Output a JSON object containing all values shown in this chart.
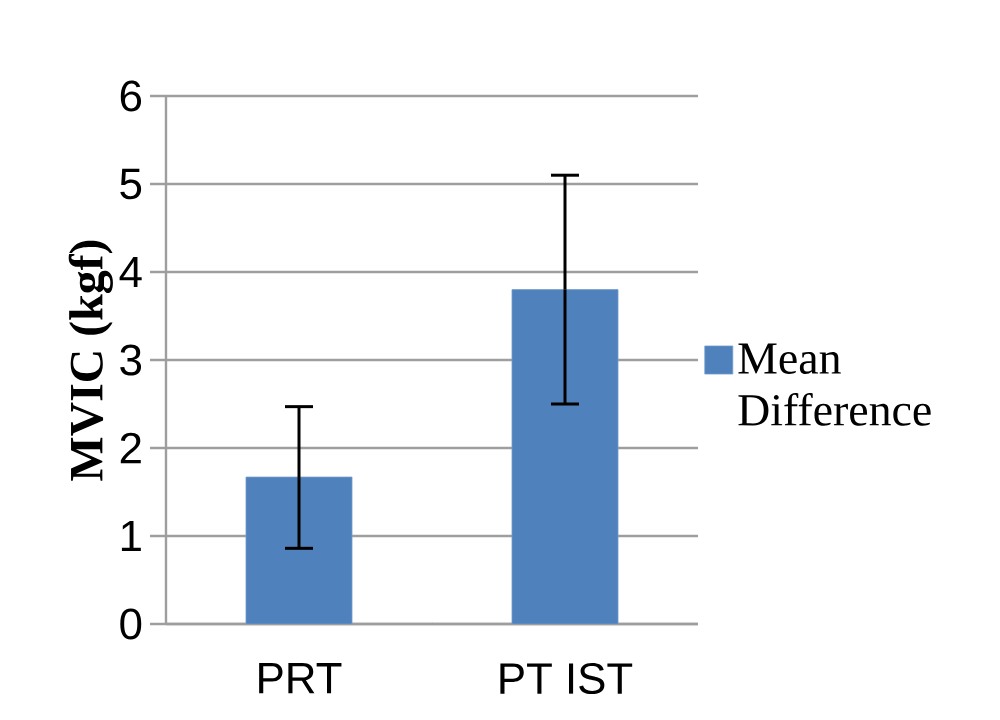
{
  "chart_data": {
    "type": "bar",
    "ylabel": "MVIC (kgf)",
    "categories": [
      "PRT",
      "PT IST"
    ],
    "series": [
      {
        "name": "Mean Difference",
        "color": "#4f81bd",
        "values": [
          1.67,
          3.8
        ],
        "errors": [
          [
            0.86,
            2.47
          ],
          [
            2.5,
            5.1
          ]
        ]
      }
    ],
    "ylim": [
      0,
      6
    ],
    "yticks": [
      0,
      1,
      2,
      3,
      4,
      5,
      6
    ],
    "grid": "y",
    "legend": "right"
  }
}
